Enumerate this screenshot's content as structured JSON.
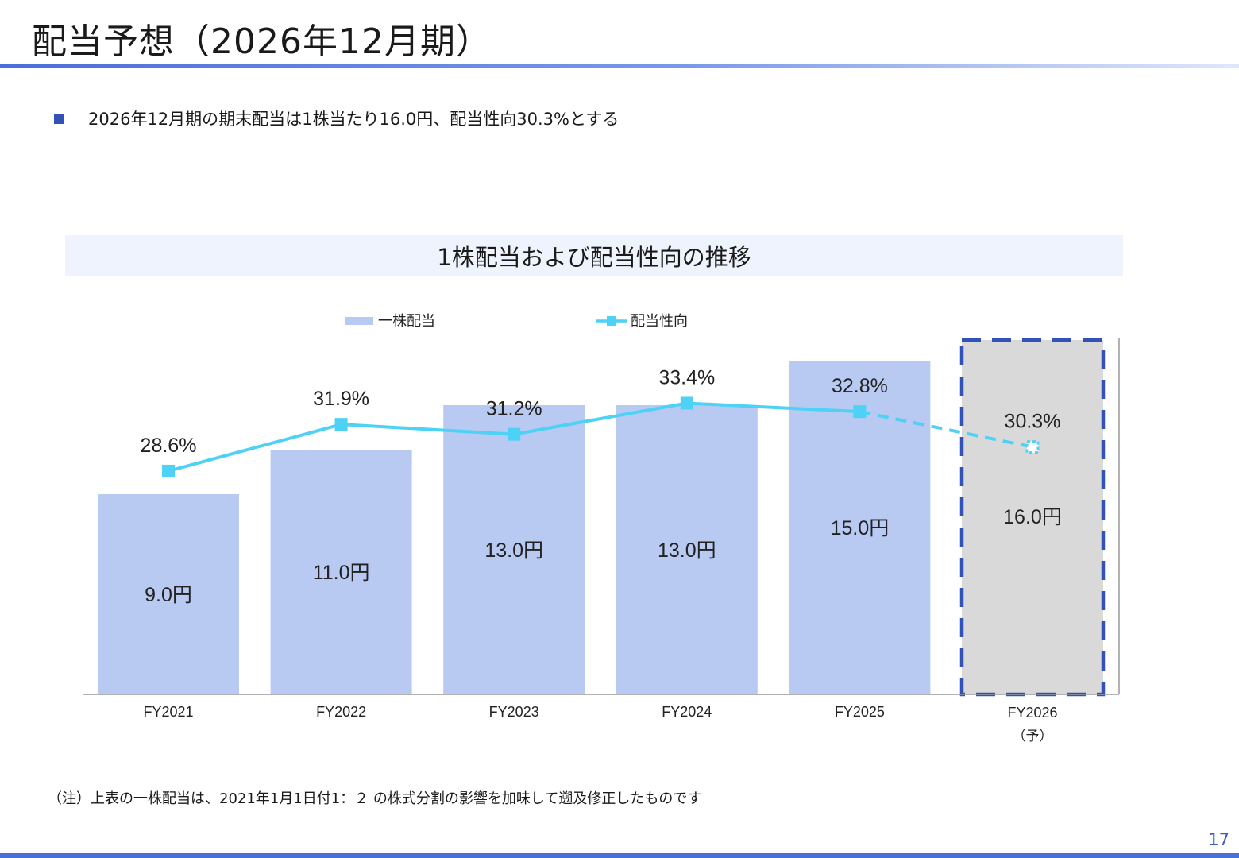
{
  "page": {
    "title": "配当予想（2026年12月期）",
    "bullet": "2026年12月期の期末配当は1株当たり16.0円、配当性向30.3%とする",
    "note": "（注）上表の一株配当は、2021年1月1日付1：２ の株式分割の影響を加味して遡及修正したものです",
    "page_number": "17"
  },
  "chart_data": {
    "type": "bar",
    "title": "1株配当および配当性向の推移",
    "categories": [
      "FY2021",
      "FY2022",
      "FY2023",
      "FY2024",
      "FY2025",
      "FY2026"
    ],
    "category_sublabels": [
      "",
      "",
      "",
      "",
      "",
      "（予）"
    ],
    "series": [
      {
        "name": "一株配当",
        "type": "bar",
        "values": [
          9.0,
          11.0,
          13.0,
          13.0,
          15.0,
          16.0
        ],
        "labels": [
          "9.0円",
          "11.0円",
          "13.0円",
          "13.0円",
          "15.0円",
          "16.0円"
        ],
        "color": "#b8c9f2",
        "forecast_color": "#d9d9d9"
      },
      {
        "name": "配当性向",
        "type": "line",
        "values": [
          28.6,
          31.9,
          31.2,
          33.4,
          32.8,
          30.3
        ],
        "labels": [
          "28.6%",
          "31.9%",
          "31.2%",
          "33.4%",
          "32.8%",
          "30.3%"
        ],
        "color": "#4dd2f5"
      }
    ],
    "forecast_index": 5,
    "highlight_color": "#3352b8",
    "legend_position": "top",
    "bar_ylim": [
      0,
      16
    ],
    "line_ylim": [
      0,
      40
    ]
  }
}
